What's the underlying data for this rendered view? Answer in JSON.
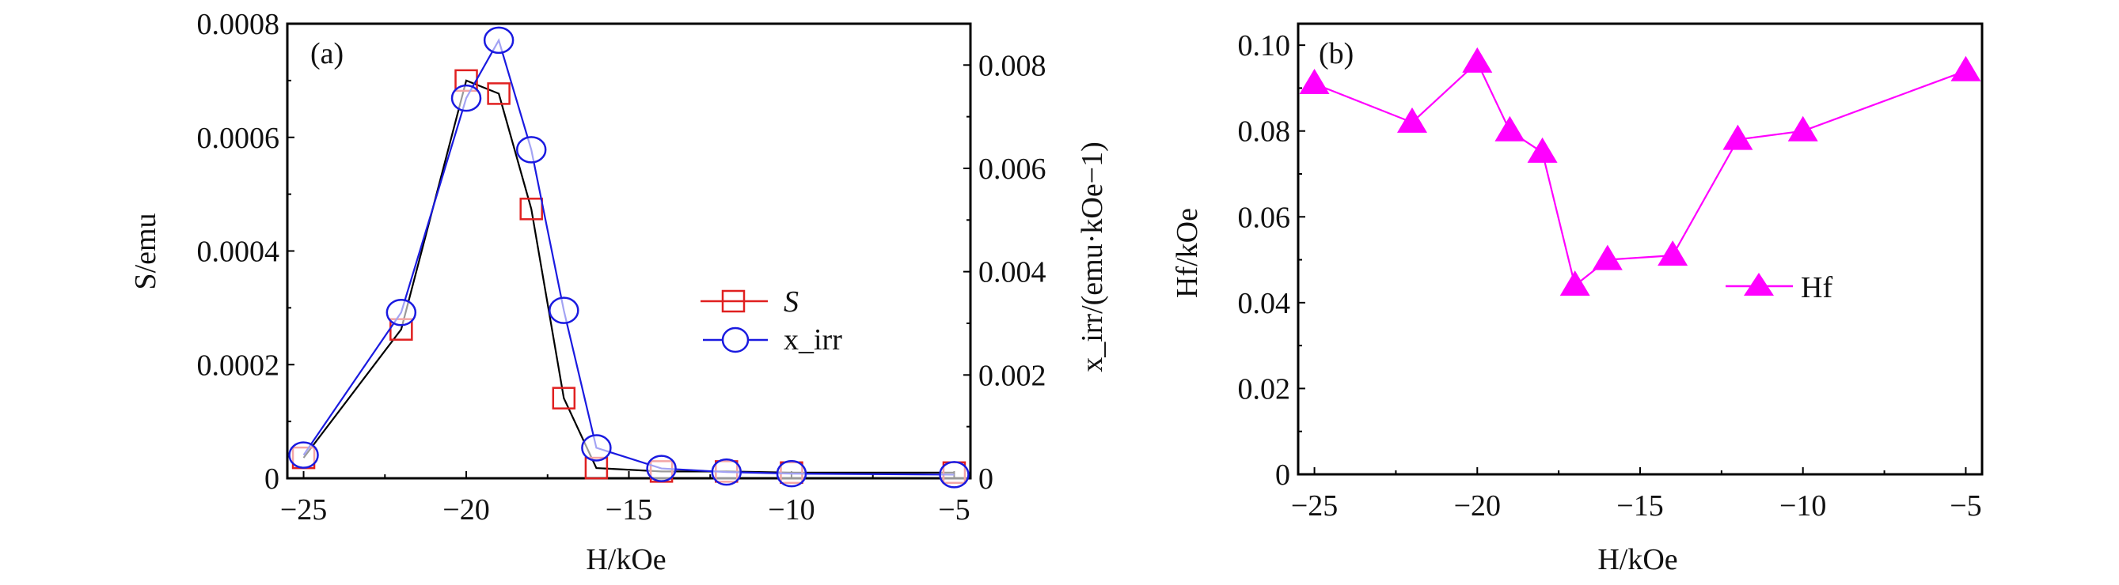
{
  "chart_data": [
    {
      "type": "line",
      "panel_label": "(a)",
      "xlabel": "H/kOe",
      "ylabel": "S/emu",
      "y2label": "x_irr/(emu·kOe−1)",
      "xlim": [
        -25.5,
        -4.5
      ],
      "ylim": [
        0,
        0.0008
      ],
      "y2lim": [
        0,
        0.0088
      ],
      "xticks": [
        -25,
        -20,
        -15,
        -10,
        -5
      ],
      "xtick_labels": [
        "−25",
        "−20",
        "−15",
        "−10",
        "−5"
      ],
      "yticks": [
        0,
        0.0002,
        0.0004,
        0.0006,
        0.0008
      ],
      "ytick_labels": [
        "0",
        "0.0002",
        "0.0004",
        "0.0006",
        "0.0008"
      ],
      "y2ticks": [
        0,
        0.002,
        0.004,
        0.006,
        0.008
      ],
      "y2tick_labels": [
        "0",
        "0.002",
        "0.004",
        "0.006",
        "0.008"
      ],
      "grid": false,
      "legend_placement": "center-right",
      "x": [
        -25,
        -22,
        -20,
        -19,
        -18,
        -17,
        -16,
        -14,
        -12,
        -10,
        -5
      ],
      "series": [
        {
          "name": "S",
          "axis": "left",
          "marker": "square",
          "color": "#e02020",
          "line_color": "#000000",
          "values": [
            3.6e-05,
            0.000262,
            0.0007,
            0.000677,
            0.000474,
            0.000141,
            1.8e-05,
            1.2e-05,
            1.2e-05,
            1e-05,
            1e-05
          ]
        },
        {
          "name": "x_irr",
          "axis": "right",
          "marker": "circle",
          "color": "#1a1ae0",
          "line_color": "#1a1ae0",
          "values": [
            0.00045,
            0.00321,
            0.00736,
            0.00848,
            0.00636,
            0.00325,
            0.00059,
            0.00019,
            0.00012,
            9e-05,
            7e-05
          ]
        }
      ]
    },
    {
      "type": "line",
      "panel_label": "(b)",
      "xlabel": "H/kOe",
      "ylabel": "Hf/kOe",
      "xlim": [
        -25.5,
        -4.5
      ],
      "ylim": [
        0,
        0.105
      ],
      "xticks": [
        -25,
        -20,
        -15,
        -10,
        -5
      ],
      "xtick_labels": [
        "−25",
        "−20",
        "−15",
        "−10",
        "−5"
      ],
      "yticks": [
        0,
        0.02,
        0.04,
        0.06,
        0.08,
        0.1
      ],
      "ytick_labels": [
        "0",
        "0.02",
        "0.04",
        "0.06",
        "0.08",
        "0.10"
      ],
      "grid": false,
      "legend_placement": "center-right",
      "x": [
        -25,
        -22,
        -20,
        -19,
        -18,
        -17,
        -16,
        -14,
        -12,
        -10,
        -5
      ],
      "series": [
        {
          "name": "Hf",
          "marker": "triangle",
          "color": "#ff00ff",
          "values": [
            0.091,
            0.082,
            0.096,
            0.08,
            0.075,
            0.044,
            0.05,
            0.051,
            0.078,
            0.08,
            0.094
          ]
        }
      ]
    }
  ]
}
